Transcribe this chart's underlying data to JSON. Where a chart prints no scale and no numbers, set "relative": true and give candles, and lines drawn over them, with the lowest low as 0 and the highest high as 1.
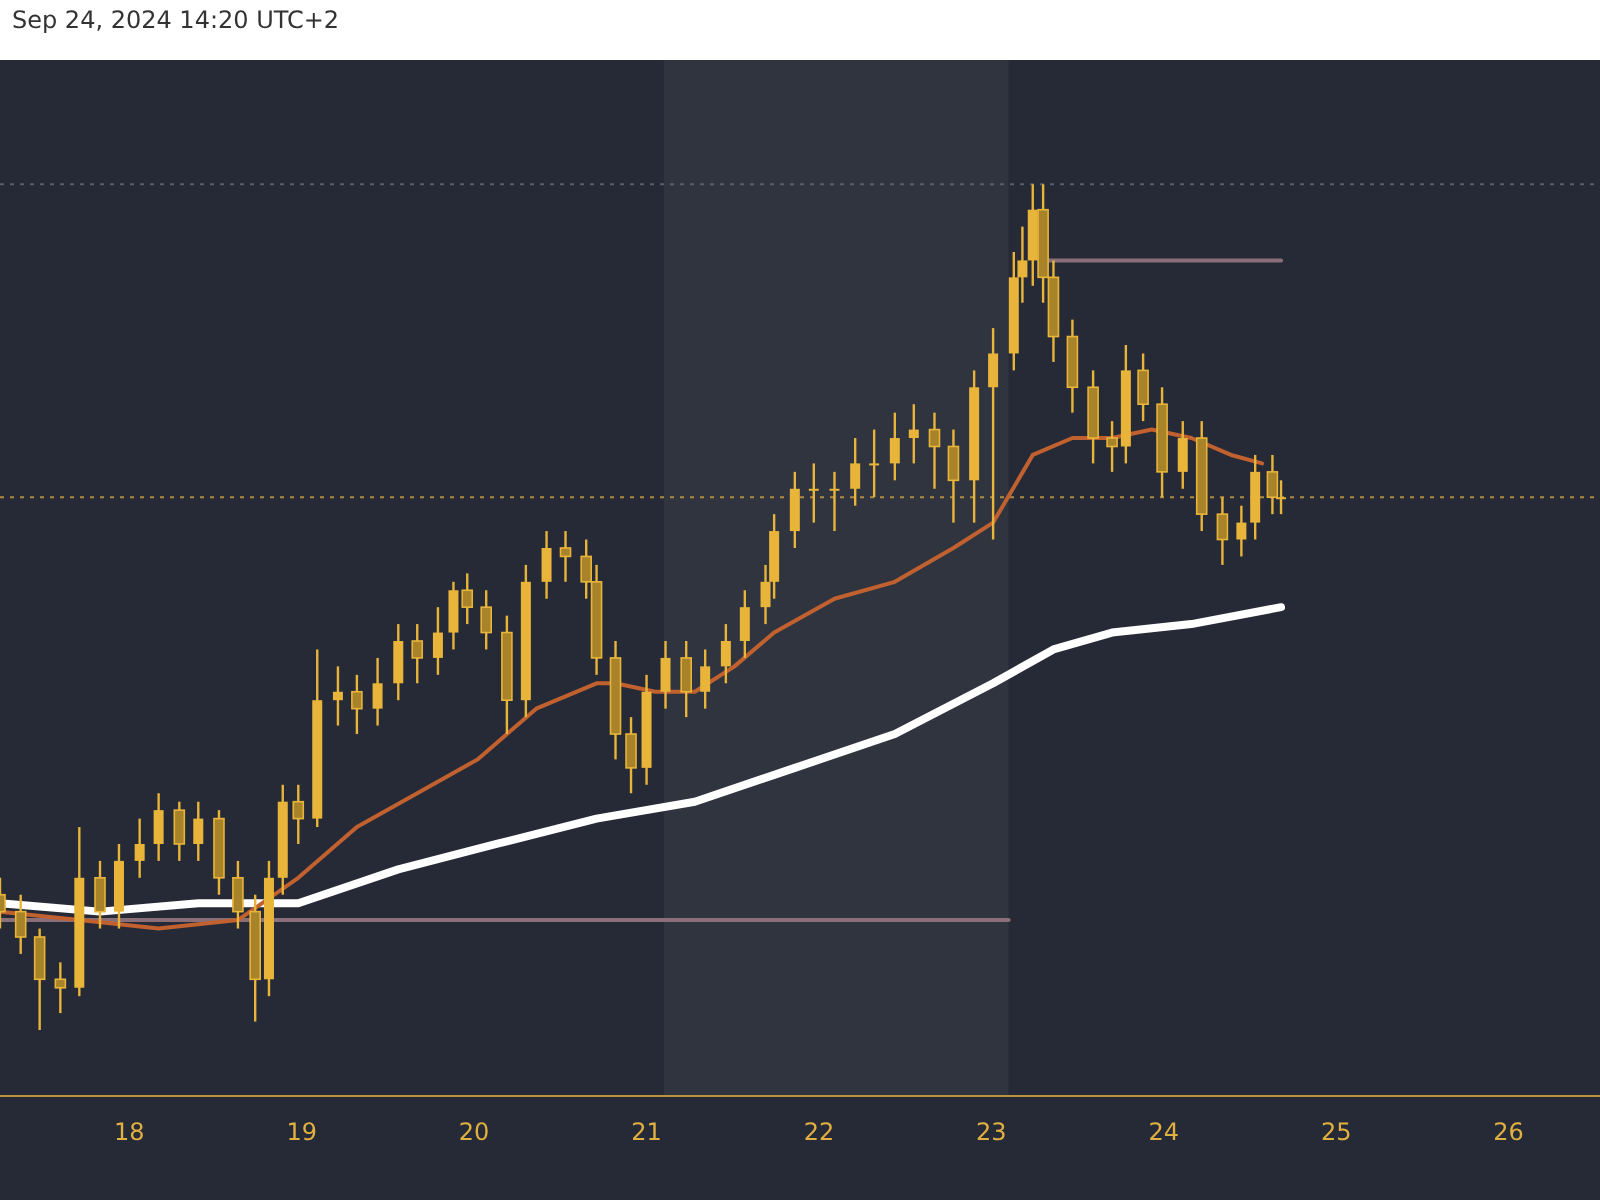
{
  "chart_data": {
    "type": "candlestick",
    "relative": true,
    "annotations": [
      "Sep 24, 2024 14:20 UTC+2"
    ],
    "xlim": [
      17.25,
      26.53
    ],
    "xticks": [
      18,
      19,
      20,
      21,
      22,
      23,
      24,
      25,
      26
    ],
    "grid": false,
    "bands": [
      {
        "axis": "x",
        "from": 21.1,
        "to": 23.1,
        "color": "#30343f"
      }
    ],
    "ref_lines": [
      {
        "axis": "y",
        "value": 1.0,
        "line_style": "dotted",
        "color": "#5a5e6a"
      },
      {
        "axis": "y",
        "value": 0.63,
        "line_style": "dotted",
        "color": "#b08a40"
      }
    ],
    "series": [
      {
        "type": "line",
        "color": "#8a6f78",
        "x": [
          17.25,
          23.1
        ],
        "values": [
          0.13,
          0.13
        ]
      },
      {
        "type": "line",
        "color": "#8a6f78",
        "x": [
          23.3,
          24.68
        ],
        "values": [
          0.91,
          0.91
        ]
      },
      {
        "type": "line",
        "color": "#ffffff",
        "x": [
          17.25,
          17.83,
          18.4,
          18.98,
          19.56,
          20.13,
          20.71,
          21.28,
          21.86,
          22.44,
          23.01,
          23.36,
          23.7,
          24.16,
          24.68
        ],
        "values": [
          0.15,
          0.14,
          0.15,
          0.15,
          0.19,
          0.22,
          0.25,
          0.27,
          0.31,
          0.35,
          0.41,
          0.45,
          0.47,
          0.48,
          0.5
        ]
      },
      {
        "type": "line",
        "color": "#c0612f",
        "x": [
          17.25,
          17.71,
          18.17,
          18.63,
          18.98,
          19.32,
          19.67,
          20.02,
          20.36,
          20.71,
          20.82,
          21.05,
          21.28,
          21.51,
          21.74,
          22.09,
          22.44,
          22.78,
          23.01,
          23.24,
          23.47,
          23.7,
          23.93,
          24.16,
          24.39,
          24.57
        ],
        "values": [
          0.14,
          0.13,
          0.12,
          0.13,
          0.18,
          0.24,
          0.28,
          0.32,
          0.38,
          0.41,
          0.41,
          0.4,
          0.4,
          0.43,
          0.47,
          0.51,
          0.53,
          0.57,
          0.6,
          0.68,
          0.7,
          0.7,
          0.71,
          0.7,
          0.68,
          0.67
        ]
      },
      {
        "color": "#e8b53a",
        "x": [
          17.25,
          17.37,
          17.48,
          17.6,
          17.71,
          17.83,
          17.94,
          18.06,
          18.17,
          18.29,
          18.4,
          18.52,
          18.63,
          18.73,
          18.81,
          18.89,
          18.98,
          19.09,
          19.21,
          19.32,
          19.44,
          19.56,
          19.67,
          19.79,
          19.88,
          19.96,
          20.07,
          20.19,
          20.3,
          20.42,
          20.53,
          20.65,
          20.71,
          20.82,
          20.91,
          21.0,
          21.11,
          21.23,
          21.34,
          21.46,
          21.57,
          21.69,
          21.74,
          21.86,
          21.97,
          22.09,
          22.21,
          22.32,
          22.44,
          22.55,
          22.67,
          22.78,
          22.9,
          23.01,
          23.13,
          23.18,
          23.24,
          23.3,
          23.36,
          23.47,
          23.59,
          23.7,
          23.78,
          23.88,
          23.99,
          24.11,
          24.22,
          24.34,
          24.45,
          24.53,
          24.63,
          24.68
        ],
        "ohlc": [
          [
            0.16,
            0.18,
            0.12,
            0.14
          ],
          [
            0.14,
            0.16,
            0.09,
            0.11
          ],
          [
            0.11,
            0.12,
            0.0,
            0.06
          ],
          [
            0.06,
            0.08,
            0.02,
            0.05
          ],
          [
            0.05,
            0.24,
            0.04,
            0.18
          ],
          [
            0.18,
            0.2,
            0.12,
            0.14
          ],
          [
            0.14,
            0.22,
            0.12,
            0.2
          ],
          [
            0.2,
            0.25,
            0.18,
            0.22
          ],
          [
            0.22,
            0.28,
            0.2,
            0.26
          ],
          [
            0.26,
            0.27,
            0.2,
            0.22
          ],
          [
            0.22,
            0.27,
            0.2,
            0.25
          ],
          [
            0.25,
            0.26,
            0.16,
            0.18
          ],
          [
            0.18,
            0.2,
            0.12,
            0.14
          ],
          [
            0.14,
            0.16,
            0.01,
            0.06
          ],
          [
            0.06,
            0.2,
            0.04,
            0.18
          ],
          [
            0.18,
            0.29,
            0.16,
            0.27
          ],
          [
            0.27,
            0.29,
            0.22,
            0.25
          ],
          [
            0.25,
            0.45,
            0.24,
            0.39
          ],
          [
            0.39,
            0.43,
            0.36,
            0.4
          ],
          [
            0.4,
            0.42,
            0.35,
            0.38
          ],
          [
            0.38,
            0.44,
            0.36,
            0.41
          ],
          [
            0.41,
            0.48,
            0.39,
            0.46
          ],
          [
            0.46,
            0.48,
            0.41,
            0.44
          ],
          [
            0.44,
            0.5,
            0.42,
            0.47
          ],
          [
            0.47,
            0.53,
            0.45,
            0.52
          ],
          [
            0.52,
            0.54,
            0.48,
            0.5
          ],
          [
            0.5,
            0.52,
            0.45,
            0.47
          ],
          [
            0.47,
            0.49,
            0.35,
            0.39
          ],
          [
            0.39,
            0.55,
            0.37,
            0.53
          ],
          [
            0.53,
            0.59,
            0.51,
            0.57
          ],
          [
            0.57,
            0.59,
            0.53,
            0.56
          ],
          [
            0.56,
            0.58,
            0.51,
            0.53
          ],
          [
            0.53,
            0.55,
            0.42,
            0.44
          ],
          [
            0.44,
            0.46,
            0.32,
            0.35
          ],
          [
            0.35,
            0.37,
            0.28,
            0.31
          ],
          [
            0.31,
            0.42,
            0.29,
            0.4
          ],
          [
            0.4,
            0.46,
            0.38,
            0.44
          ],
          [
            0.44,
            0.46,
            0.37,
            0.4
          ],
          [
            0.4,
            0.45,
            0.38,
            0.43
          ],
          [
            0.43,
            0.48,
            0.41,
            0.46
          ],
          [
            0.46,
            0.52,
            0.44,
            0.5
          ],
          [
            0.5,
            0.55,
            0.48,
            0.53
          ],
          [
            0.53,
            0.61,
            0.51,
            0.59
          ],
          [
            0.59,
            0.66,
            0.57,
            0.64
          ],
          [
            0.64,
            0.67,
            0.6,
            0.64
          ],
          [
            0.64,
            0.66,
            0.59,
            0.64
          ],
          [
            0.64,
            0.7,
            0.62,
            0.67
          ],
          [
            0.67,
            0.71,
            0.63,
            0.67
          ],
          [
            0.67,
            0.73,
            0.65,
            0.7
          ],
          [
            0.7,
            0.74,
            0.67,
            0.71
          ],
          [
            0.71,
            0.73,
            0.64,
            0.69
          ],
          [
            0.69,
            0.71,
            0.6,
            0.65
          ],
          [
            0.65,
            0.78,
            0.6,
            0.76
          ],
          [
            0.76,
            0.83,
            0.58,
            0.8
          ],
          [
            0.8,
            0.92,
            0.78,
            0.89
          ],
          [
            0.89,
            0.95,
            0.86,
            0.91
          ],
          [
            0.91,
            1.0,
            0.88,
            0.97
          ],
          [
            0.97,
            1.0,
            0.86,
            0.89
          ],
          [
            0.89,
            0.91,
            0.79,
            0.82
          ],
          [
            0.82,
            0.84,
            0.73,
            0.76
          ],
          [
            0.76,
            0.78,
            0.67,
            0.7
          ],
          [
            0.7,
            0.72,
            0.66,
            0.69
          ],
          [
            0.69,
            0.81,
            0.67,
            0.78
          ],
          [
            0.78,
            0.8,
            0.72,
            0.74
          ],
          [
            0.74,
            0.76,
            0.63,
            0.66
          ],
          [
            0.66,
            0.72,
            0.64,
            0.7
          ],
          [
            0.7,
            0.72,
            0.59,
            0.61
          ],
          [
            0.61,
            0.63,
            0.55,
            0.58
          ],
          [
            0.58,
            0.62,
            0.56,
            0.6
          ],
          [
            0.6,
            0.68,
            0.58,
            0.66
          ],
          [
            0.66,
            0.68,
            0.61,
            0.63
          ],
          [
            0.63,
            0.65,
            0.61,
            0.63
          ]
        ]
      }
    ]
  }
}
